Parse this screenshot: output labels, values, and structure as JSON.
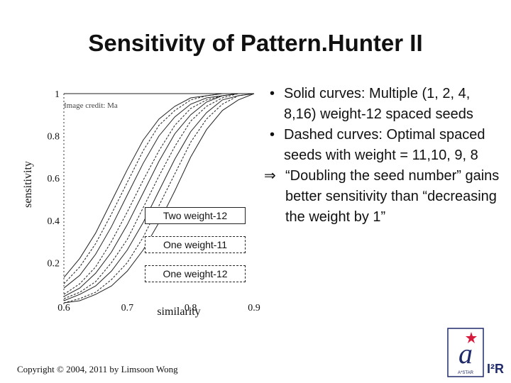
{
  "slide": {
    "title": "Sensitivity of Pattern.Hunter II",
    "image_credit": "Image credit: Ma",
    "legend": {
      "solid": "Two weight-12",
      "dashed_1": "One weight-11",
      "dashed_2": "One weight-12"
    },
    "bullets": [
      {
        "mark": "•",
        "text": "Solid curves: Multiple (1, 2, 4, 8,16) weight-12 spaced seeds"
      },
      {
        "mark": "•",
        "text": "Dashed curves: Optimal spaced seeds with weight = 11,10, 9, 8"
      },
      {
        "mark": "⇒",
        "text": "“Doubling the seed number” gains better sensitivity than “decreasing the weight by 1”"
      }
    ],
    "copyright": "Copyright © 2004, 2011 by Limsoon Wong",
    "logo": {
      "icon": "astar-logo-icon",
      "text": "I²R",
      "sub": "A*STAR",
      "accent": "#d81b3c",
      "brand": "#1f2a6b"
    }
  },
  "chart_data": {
    "type": "line",
    "xlabel": "similarity",
    "ylabel": "sensitivity",
    "xlim": [
      0.6,
      0.9
    ],
    "ylim": [
      0,
      1
    ],
    "x_ticks": [
      "0.6",
      "0.7",
      "0.8",
      "0.9"
    ],
    "y_ticks": [
      "0.2",
      "0.4",
      "0.6",
      "0.8",
      "1"
    ],
    "x": [
      0.6,
      0.625,
      0.65,
      0.675,
      0.7,
      0.725,
      0.75,
      0.775,
      0.8,
      0.825,
      0.85,
      0.875,
      0.9
    ],
    "series": [
      {
        "style": "solid",
        "values": [
          0.13,
          0.22,
          0.34,
          0.49,
          0.64,
          0.78,
          0.88,
          0.94,
          0.98,
          0.99,
          1.0,
          1.0,
          1.0
        ]
      },
      {
        "style": "solid",
        "values": [
          0.08,
          0.14,
          0.24,
          0.37,
          0.52,
          0.67,
          0.8,
          0.89,
          0.95,
          0.98,
          0.99,
          1.0,
          1.0
        ]
      },
      {
        "style": "solid",
        "values": [
          0.04,
          0.08,
          0.15,
          0.25,
          0.38,
          0.53,
          0.68,
          0.81,
          0.9,
          0.96,
          0.99,
          1.0,
          1.0
        ]
      },
      {
        "style": "solid",
        "values": [
          0.02,
          0.05,
          0.09,
          0.16,
          0.26,
          0.39,
          0.54,
          0.69,
          0.82,
          0.91,
          0.97,
          0.99,
          1.0
        ]
      },
      {
        "style": "solid",
        "values": [
          0.01,
          0.02,
          0.05,
          0.09,
          0.16,
          0.26,
          0.39,
          0.54,
          0.7,
          0.83,
          0.92,
          0.97,
          1.0
        ]
      },
      {
        "style": "dashed",
        "values": [
          0.1,
          0.18,
          0.29,
          0.43,
          0.58,
          0.73,
          0.85,
          0.92,
          0.97,
          0.99,
          1.0,
          1.0,
          1.0
        ]
      },
      {
        "style": "dashed",
        "values": [
          0.05,
          0.1,
          0.18,
          0.3,
          0.44,
          0.59,
          0.73,
          0.85,
          0.93,
          0.97,
          0.99,
          1.0,
          1.0
        ]
      },
      {
        "style": "dashed",
        "values": [
          0.03,
          0.06,
          0.11,
          0.2,
          0.31,
          0.46,
          0.61,
          0.75,
          0.87,
          0.94,
          0.98,
          1.0,
          1.0
        ]
      },
      {
        "style": "dashed",
        "values": [
          0.01,
          0.03,
          0.06,
          0.12,
          0.2,
          0.32,
          0.47,
          0.62,
          0.77,
          0.88,
          0.95,
          0.99,
          1.0
        ]
      }
    ]
  }
}
